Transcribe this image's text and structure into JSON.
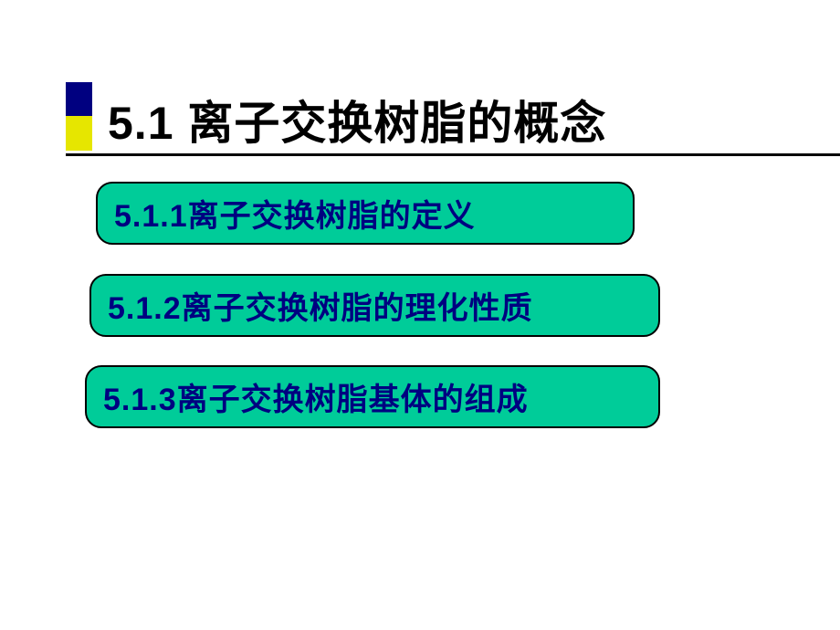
{
  "slide": {
    "title": "5.1 离子交换树脂的概念",
    "accent": {
      "top_color": "#000080",
      "bottom_color": "#e6e600"
    },
    "underline_color": "#000000",
    "sections": [
      {
        "text": "5.1.1离子交换树脂的定义",
        "bg_color": "#00cc99",
        "text_color": "#000080",
        "border_color": "#000000"
      },
      {
        "text": "5.1.2离子交换树脂的理化性质",
        "bg_color": "#00cc99",
        "text_color": "#000080",
        "border_color": "#000000"
      },
      {
        "text": "5.1.3离子交换树脂基体的组成",
        "bg_color": "#00cc99",
        "text_color": "#000080",
        "border_color": "#000000"
      }
    ]
  }
}
